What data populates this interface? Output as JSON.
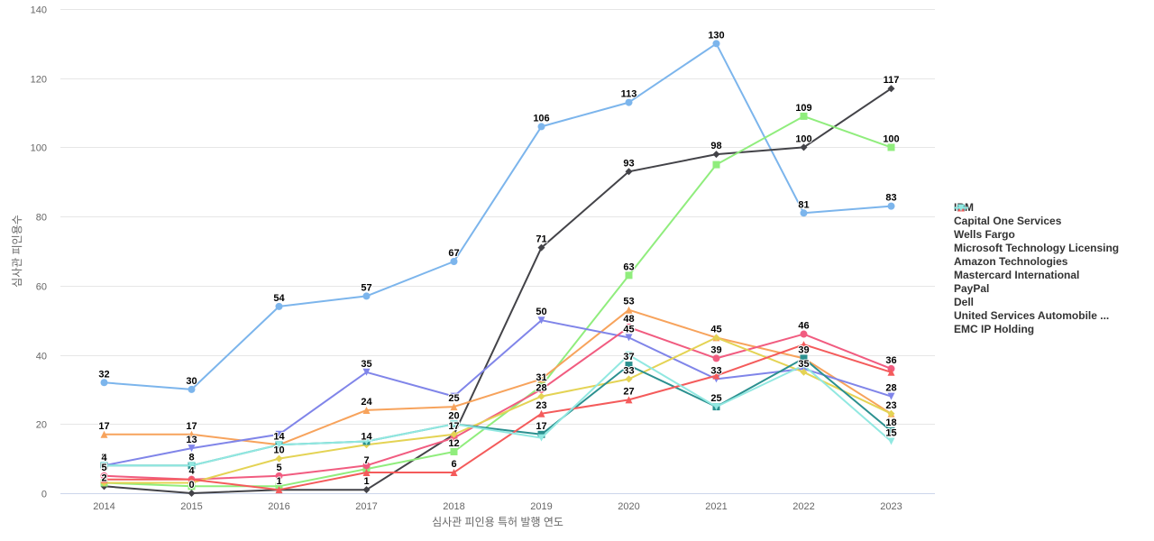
{
  "chart_data": {
    "type": "line",
    "title": "",
    "xlabel": "심사관 피인용 특허 발행 연도",
    "ylabel": "심사관 피인용수",
    "categories": [
      "2014",
      "2015",
      "2016",
      "2017",
      "2018",
      "2019",
      "2020",
      "2021",
      "2022",
      "2023"
    ],
    "ylim": [
      0,
      140
    ],
    "yticks": [
      0,
      20,
      40,
      60,
      80,
      100,
      120,
      140
    ],
    "grid": true,
    "legend_position": "right",
    "series": [
      {
        "name": "IBM",
        "color": "#7cb5ec",
        "marker": "circle",
        "values": [
          32,
          30,
          54,
          57,
          67,
          106,
          113,
          130,
          81,
          83
        ]
      },
      {
        "name": "Capital One Services",
        "color": "#434348",
        "marker": "diamond",
        "values": [
          2,
          0,
          1,
          1,
          17,
          71,
          93,
          98,
          100,
          117
        ]
      },
      {
        "name": "Wells Fargo",
        "color": "#90ed7d",
        "marker": "square",
        "values": [
          3,
          2,
          2,
          7,
          12,
          31,
          63,
          95,
          109,
          100
        ]
      },
      {
        "name": "Microsoft Technology Licensing",
        "color": "#f7a35c",
        "marker": "triangle",
        "values": [
          17,
          17,
          14,
          24,
          25,
          33,
          53,
          45,
          39,
          23
        ]
      },
      {
        "name": "Amazon Technologies",
        "color": "#8085e9",
        "marker": "triangle-down",
        "values": [
          8,
          13,
          17,
          35,
          28,
          50,
          45,
          33,
          36,
          28
        ]
      },
      {
        "name": "Mastercard International",
        "color": "#f15c80",
        "marker": "circle",
        "values": [
          5,
          4,
          5,
          8,
          16,
          30,
          48,
          39,
          46,
          36
        ]
      },
      {
        "name": "PayPal",
        "color": "#e4d354",
        "marker": "diamond",
        "values": [
          3,
          3,
          10,
          14,
          17,
          28,
          33,
          45,
          35,
          23
        ]
      },
      {
        "name": "Dell",
        "color": "#2b908f",
        "marker": "square",
        "values": [
          8,
          8,
          14,
          15,
          20,
          17,
          37,
          25,
          39,
          18
        ]
      },
      {
        "name": "United Services Automobile ...",
        "color": "#f45b5b",
        "marker": "triangle",
        "values": [
          4,
          4,
          1,
          6,
          6,
          23,
          27,
          34,
          43,
          35
        ]
      },
      {
        "name": "EMC IP Holding",
        "color": "#91e8e1",
        "marker": "triangle-down",
        "values": [
          8,
          8,
          14,
          15,
          20,
          16,
          40,
          25,
          37,
          15
        ]
      }
    ],
    "data_labels": {
      "2014": [
        "32",
        "17",
        "8",
        "5",
        "4",
        "2"
      ],
      "2015": [
        "30",
        "17",
        "13",
        "8",
        "4",
        "0"
      ],
      "2016": [
        "54",
        "14",
        "10",
        "5",
        "1"
      ],
      "2017": [
        "57",
        "35",
        "24",
        "14",
        "7",
        "1"
      ],
      "2018": [
        "67",
        "25",
        "20",
        "17",
        "12",
        "6"
      ],
      "2019": [
        "106",
        "71",
        "50",
        "31",
        "28",
        "23",
        "17"
      ],
      "2020": [
        "113",
        "93",
        "63",
        "53",
        "48",
        "45",
        "37",
        "33",
        "27"
      ],
      "2021": [
        "130",
        "98",
        "45",
        "39",
        "33",
        "25"
      ],
      "2022": [
        "109",
        "100",
        "81",
        "46",
        "39",
        "35"
      ],
      "2023": [
        "117",
        "100",
        "83",
        "36",
        "28",
        "23",
        "18",
        "15"
      ]
    }
  }
}
